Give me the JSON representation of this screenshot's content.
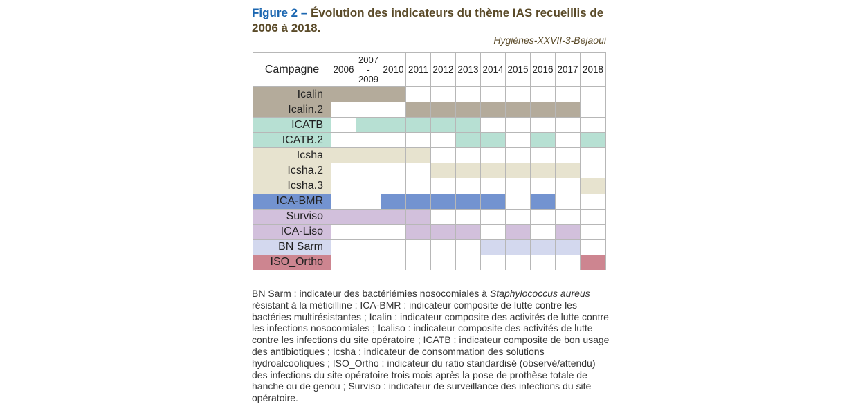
{
  "figure": {
    "label": "Figure 2 –",
    "title": "Évolution des indicateurs du thème IAS recueillis de 2006 à 2018.",
    "source": "Hygiènes-XXVII-3-Bejaoui"
  },
  "table": {
    "header_label": "Campagne",
    "columns": [
      "2006",
      "2007-2009",
      "2010",
      "2011",
      "2012",
      "2013",
      "2014",
      "2015",
      "2016",
      "2017",
      "2018"
    ],
    "rows": [
      {
        "label": "Icalin",
        "color": "#b4ab9b",
        "active": [
          1,
          1,
          1,
          0,
          0,
          0,
          0,
          0,
          0,
          0,
          0
        ]
      },
      {
        "label": "Icalin.2",
        "color": "#b4ab9b",
        "active": [
          0,
          0,
          0,
          1,
          1,
          1,
          1,
          1,
          1,
          1,
          0
        ]
      },
      {
        "label": "ICATB",
        "color": "#b7e0d3",
        "active": [
          0,
          1,
          1,
          1,
          1,
          1,
          0,
          0,
          0,
          0,
          0
        ]
      },
      {
        "label": "ICATB.2",
        "color": "#b7e0d3",
        "active": [
          0,
          0,
          0,
          0,
          0,
          1,
          1,
          0,
          1,
          0,
          1
        ]
      },
      {
        "label": "Icsha",
        "color": "#e7e3cf",
        "active": [
          1,
          1,
          1,
          1,
          0,
          0,
          0,
          0,
          0,
          0,
          0
        ]
      },
      {
        "label": "Icsha.2",
        "color": "#e7e3cf",
        "active": [
          0,
          0,
          0,
          0,
          1,
          1,
          1,
          1,
          1,
          1,
          0
        ]
      },
      {
        "label": "Icsha.3",
        "color": "#e7e3cf",
        "active": [
          0,
          0,
          0,
          0,
          0,
          0,
          0,
          0,
          0,
          0,
          1
        ]
      },
      {
        "label": "ICA-BMR",
        "color": "#7393d0",
        "active": [
          0,
          0,
          1,
          1,
          1,
          1,
          1,
          0,
          1,
          0,
          0
        ]
      },
      {
        "label": "Surviso",
        "color": "#d2c0dc",
        "active": [
          1,
          1,
          1,
          1,
          0,
          0,
          0,
          0,
          0,
          0,
          0
        ]
      },
      {
        "label": "ICA-Liso",
        "color": "#d2c0dc",
        "active": [
          0,
          0,
          0,
          1,
          1,
          1,
          0,
          1,
          0,
          1,
          0
        ]
      },
      {
        "label": "BN Sarm",
        "color": "#d3d8ee",
        "active": [
          0,
          0,
          0,
          0,
          0,
          0,
          1,
          1,
          1,
          1,
          0
        ]
      },
      {
        "label": "ISO_Ortho",
        "color": "#cd8590",
        "active": [
          0,
          0,
          0,
          0,
          0,
          0,
          0,
          0,
          0,
          0,
          1
        ]
      }
    ]
  },
  "caption": {
    "part1": "BN Sarm : indicateur des bactériémies nosocomiales à ",
    "italic": "Staphylococcus aureus",
    "part2": " résistant à la méticilline ; ICA-BMR : indicateur composite de lutte contre les bactéries multirésistantes ; Icalin : indicateur composite des activités de lutte contre les infections nosocomiales ; Icaliso : indicateur composite des activités de lutte contre les infections du site opératoire ; ICATB : indicateur composite de bon usage des antibiotiques ; Icsha : indicateur de consommation des solutions hydroalcooliques ; ISO_Ortho : indicateur du ratio standardisé (observé/attendu) des infections du site opératoire trois mois après la pose de prothèse totale de hanche ou de genou ; Surviso : indicateur de surveillance des infections du site opératoire."
  }
}
